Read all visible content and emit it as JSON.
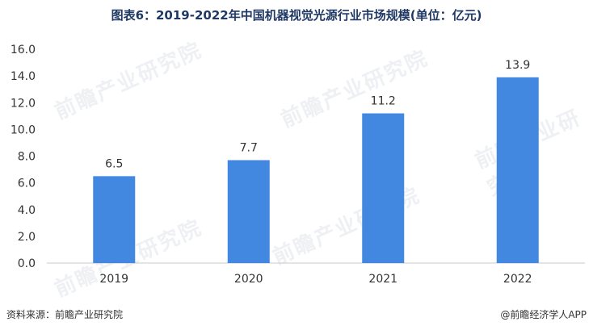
{
  "chart_data": {
    "type": "bar",
    "title": "图表6：2019-2022年中国机器视觉光源行业市场规模(单位：亿元)",
    "categories": [
      "2019",
      "2020",
      "2021",
      "2022"
    ],
    "values": [
      6.5,
      7.7,
      11.2,
      13.9
    ],
    "ylim": [
      0,
      16
    ],
    "yticks": [
      "0.0",
      "2.0",
      "4.0",
      "6.0",
      "8.0",
      "10.0",
      "12.0",
      "14.0",
      "16.0"
    ],
    "data_labels": [
      "6.5",
      "7.7",
      "11.2",
      "13.9"
    ],
    "grid": false,
    "bar_color": "#4287e0",
    "legend": "none"
  },
  "source_text": "资料来源：前瞻产业研究院",
  "credit_text": "@前瞻经济学人APP",
  "watermark_text": "前瞻产业研究院"
}
